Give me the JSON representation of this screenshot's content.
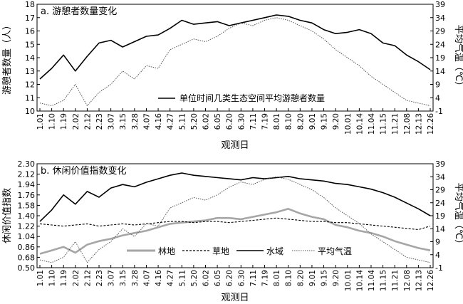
{
  "x_ticks": [
    "1.01",
    "1.10",
    "1.19",
    "2.02",
    "2.12",
    "2.23",
    "3.07",
    "3.15",
    "3.28",
    "4.07",
    "4.16",
    "4.27",
    "5.11",
    "5.20",
    "6.02",
    "6.05",
    "6.20",
    "6.30",
    "7.11",
    "7.19",
    "8.01",
    "8.10",
    "8.20",
    "9.01",
    "9.15",
    "9.20",
    "10.01",
    "10.14",
    "11.04",
    "11.15",
    "11.21",
    "12.08",
    "12.13",
    "12.26"
  ],
  "chart_data": [
    {
      "type": "line",
      "title": "a. 游憩者数量变化",
      "xlabel": "观测日",
      "ylabel": "游憩者数量（人）",
      "y2label": "平均气温（℃）",
      "ylim": [
        10,
        18
      ],
      "y_ticks": [
        10,
        11,
        12,
        13,
        14,
        15,
        16,
        17,
        18
      ],
      "y2lim": [
        -1,
        39
      ],
      "y2_ticks": [
        -1,
        4,
        9,
        14,
        19,
        24,
        29,
        34,
        39
      ],
      "legend_position": "lower-right",
      "series": [
        {
          "name": "单位时间几类生态空间平均游憩者数量",
          "style": "solid",
          "axis": "left",
          "values": [
            12.4,
            13.2,
            14.2,
            13.0,
            14.1,
            15.1,
            15.3,
            14.8,
            15.2,
            15.6,
            15.7,
            16.2,
            16.8,
            16.5,
            16.6,
            16.7,
            16.4,
            16.6,
            16.8,
            17.0,
            17.2,
            17.1,
            16.8,
            16.6,
            16.1,
            15.8,
            15.9,
            16.1,
            15.8,
            15.1,
            14.9,
            14.2,
            13.7,
            13.1
          ]
        },
        {
          "name": "",
          "style": "dotted",
          "axis": "right",
          "values": [
            2,
            1,
            3,
            9,
            1,
            6,
            9,
            14,
            11,
            16,
            15,
            22,
            24,
            26,
            25,
            27,
            30,
            32,
            31,
            33,
            34,
            33,
            31,
            29,
            26,
            22,
            19,
            16,
            12,
            9,
            6,
            3,
            2,
            1
          ]
        }
      ]
    },
    {
      "type": "line",
      "title": "b. 休闲价值指数变化",
      "xlabel": "观测日",
      "ylabel": "休闲价值指数",
      "y2label": "平均气温（℃）",
      "ylim": [
        0.5,
        2.3
      ],
      "y_ticks": [
        "0.50",
        "0.68",
        "0.86",
        "1.04",
        "1.22",
        "1.40",
        "1.58",
        "1.76",
        "1.94",
        "2.12",
        "2.30"
      ],
      "y2lim": [
        -1,
        39
      ],
      "y2_ticks": [
        -1,
        4,
        9,
        14,
        19,
        24,
        29,
        34,
        39
      ],
      "legend_position": "lower-center",
      "series": [
        {
          "name": "林地",
          "style": "gray-thick",
          "axis": "left",
          "values": [
            0.74,
            0.8,
            0.86,
            0.76,
            0.9,
            0.96,
            1.0,
            1.06,
            1.1,
            1.14,
            1.2,
            1.26,
            1.28,
            1.3,
            1.32,
            1.36,
            1.36,
            1.34,
            1.38,
            1.42,
            1.46,
            1.52,
            1.44,
            1.38,
            1.34,
            1.24,
            1.2,
            1.14,
            1.1,
            1.04,
            0.96,
            0.9,
            0.84,
            0.8
          ]
        },
        {
          "name": "草地",
          "style": "dashed",
          "axis": "left",
          "values": [
            1.26,
            1.24,
            1.22,
            1.24,
            1.26,
            1.22,
            1.24,
            1.26,
            1.24,
            1.26,
            1.28,
            1.3,
            1.3,
            1.28,
            1.3,
            1.3,
            1.28,
            1.3,
            1.32,
            1.34,
            1.36,
            1.34,
            1.32,
            1.3,
            1.3,
            1.28,
            1.28,
            1.26,
            1.24,
            1.22,
            1.2,
            1.18,
            1.16,
            1.22
          ]
        },
        {
          "name": "水域",
          "style": "solid",
          "axis": "left",
          "values": [
            1.3,
            1.5,
            1.76,
            1.6,
            1.82,
            1.72,
            1.88,
            1.94,
            1.9,
            1.98,
            2.04,
            2.1,
            2.14,
            2.1,
            2.08,
            2.06,
            2.04,
            2.02,
            2.06,
            2.04,
            2.06,
            2.08,
            2.04,
            2.02,
            2.0,
            1.96,
            1.94,
            1.9,
            1.86,
            1.8,
            1.72,
            1.62,
            1.52,
            1.4
          ]
        },
        {
          "name": "平均气温",
          "style": "dotted",
          "axis": "right",
          "values": [
            2,
            1,
            3,
            9,
            1,
            6,
            9,
            14,
            11,
            16,
            15,
            22,
            24,
            26,
            25,
            27,
            30,
            32,
            31,
            33,
            34,
            33,
            31,
            29,
            26,
            22,
            19,
            16,
            12,
            9,
            6,
            3,
            2,
            1
          ]
        }
      ]
    }
  ]
}
